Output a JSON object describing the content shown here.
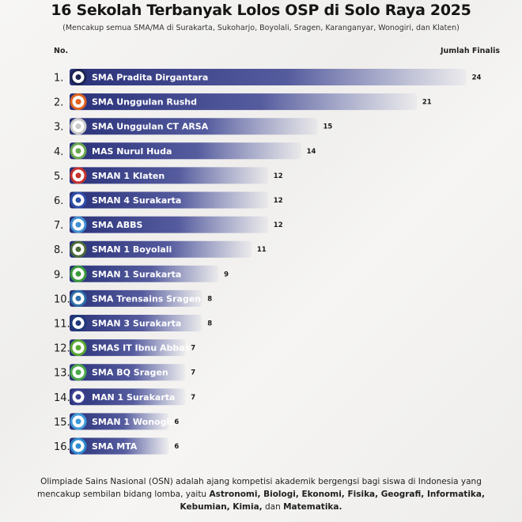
{
  "header": {
    "title": "16 Sekolah Terbanyak Lolos OSP di Solo Raya 2025",
    "subtitle": "(Mencakup semua SMA/MA di Surakarta, Sukoharjo, Boyolali, Sragen, Karanganyar, Wonogiri, dan Klaten)",
    "col_no": "No.",
    "col_value": "Jumlah Finalis"
  },
  "chart_data": {
    "type": "bar",
    "orientation": "horizontal",
    "title": "16 Sekolah Terbanyak Lolos OSP di Solo Raya 2025",
    "categories": [
      "SMA Pradita Dirgantara",
      "SMA Unggulan Rushd",
      "SMA Unggulan CT ARSA",
      "MAS Nurul Huda",
      "SMAN 1 Klaten",
      "SMAN 4 Surakarta",
      "SMA ABBS",
      "SMAN 1 Boyolali",
      "SMAN 1 Surakarta",
      "SMA Trensains Sragen",
      "SMAN 3 Surakarta",
      "SMAS IT Ibnu Abbas",
      "SMA BQ Sragen",
      "MAN 1 Surakarta",
      "SMAN 1 Wonogiri",
      "SMA MTA"
    ],
    "ranks": [
      "1.",
      "2.",
      "3.",
      "4.",
      "5.",
      "6.",
      "7.",
      "8.",
      "9.",
      "10.",
      "11.",
      "12.",
      "13.",
      "14.",
      "15.",
      "16."
    ],
    "values": [
      24,
      21,
      15,
      14,
      12,
      12,
      12,
      11,
      9,
      8,
      8,
      7,
      7,
      7,
      6,
      6
    ],
    "xlim": [
      0,
      24
    ],
    "grid": false,
    "bar_color": "#2c3580",
    "logo_colors": [
      "#1d2450",
      "#e2631f",
      "#c9c9c9",
      "#6aa84f",
      "#c8322c",
      "#2f4fa8",
      "#3f8fd1",
      "#4b6a3a",
      "#3c9a3c",
      "#2d6fa8",
      "#1f3a7a",
      "#5aa832",
      "#4aa84a",
      "#3a3f8f",
      "#3f9ad8",
      "#2f8ad0"
    ]
  },
  "footer": {
    "part1": "Olimpiade Sains Nasional (OSN) adalah ajang kompetisi akademik bergengsi bagi siswa di Indonesia yang mencakup sembilan bidang lomba, yaitu ",
    "bold1": "Astronomi, Biologi, Ekonomi, Fisika, Geografi, Informatika, Kebumian, Kimia,",
    "part2": " dan ",
    "bold2": "Matematika."
  }
}
